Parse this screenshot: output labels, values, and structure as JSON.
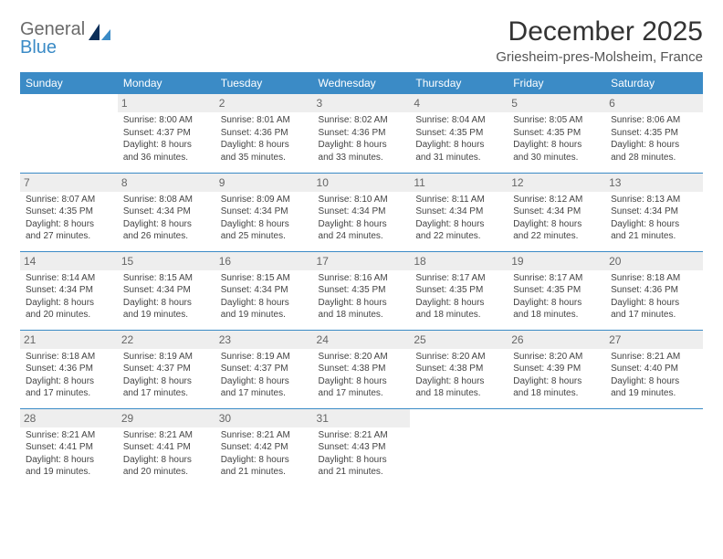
{
  "brand": {
    "part1": "General",
    "part2": "Blue"
  },
  "title": "December 2025",
  "subtitle": "Griesheim-pres-Molsheim, France",
  "colors": {
    "header_bg": "#3b8bc6",
    "header_text": "#ffffff",
    "daynum_bg": "#eeeeee",
    "row_border": "#3b8bc6",
    "text": "#444444",
    "page_bg": "#ffffff"
  },
  "weekdays": [
    "Sunday",
    "Monday",
    "Tuesday",
    "Wednesday",
    "Thursday",
    "Friday",
    "Saturday"
  ],
  "grid": [
    [
      null,
      {
        "n": "1",
        "sr": "Sunrise: 8:00 AM",
        "ss": "Sunset: 4:37 PM",
        "d1": "Daylight: 8 hours",
        "d2": "and 36 minutes."
      },
      {
        "n": "2",
        "sr": "Sunrise: 8:01 AM",
        "ss": "Sunset: 4:36 PM",
        "d1": "Daylight: 8 hours",
        "d2": "and 35 minutes."
      },
      {
        "n": "3",
        "sr": "Sunrise: 8:02 AM",
        "ss": "Sunset: 4:36 PM",
        "d1": "Daylight: 8 hours",
        "d2": "and 33 minutes."
      },
      {
        "n": "4",
        "sr": "Sunrise: 8:04 AM",
        "ss": "Sunset: 4:35 PM",
        "d1": "Daylight: 8 hours",
        "d2": "and 31 minutes."
      },
      {
        "n": "5",
        "sr": "Sunrise: 8:05 AM",
        "ss": "Sunset: 4:35 PM",
        "d1": "Daylight: 8 hours",
        "d2": "and 30 minutes."
      },
      {
        "n": "6",
        "sr": "Sunrise: 8:06 AM",
        "ss": "Sunset: 4:35 PM",
        "d1": "Daylight: 8 hours",
        "d2": "and 28 minutes."
      }
    ],
    [
      {
        "n": "7",
        "sr": "Sunrise: 8:07 AM",
        "ss": "Sunset: 4:35 PM",
        "d1": "Daylight: 8 hours",
        "d2": "and 27 minutes."
      },
      {
        "n": "8",
        "sr": "Sunrise: 8:08 AM",
        "ss": "Sunset: 4:34 PM",
        "d1": "Daylight: 8 hours",
        "d2": "and 26 minutes."
      },
      {
        "n": "9",
        "sr": "Sunrise: 8:09 AM",
        "ss": "Sunset: 4:34 PM",
        "d1": "Daylight: 8 hours",
        "d2": "and 25 minutes."
      },
      {
        "n": "10",
        "sr": "Sunrise: 8:10 AM",
        "ss": "Sunset: 4:34 PM",
        "d1": "Daylight: 8 hours",
        "d2": "and 24 minutes."
      },
      {
        "n": "11",
        "sr": "Sunrise: 8:11 AM",
        "ss": "Sunset: 4:34 PM",
        "d1": "Daylight: 8 hours",
        "d2": "and 22 minutes."
      },
      {
        "n": "12",
        "sr": "Sunrise: 8:12 AM",
        "ss": "Sunset: 4:34 PM",
        "d1": "Daylight: 8 hours",
        "d2": "and 22 minutes."
      },
      {
        "n": "13",
        "sr": "Sunrise: 8:13 AM",
        "ss": "Sunset: 4:34 PM",
        "d1": "Daylight: 8 hours",
        "d2": "and 21 minutes."
      }
    ],
    [
      {
        "n": "14",
        "sr": "Sunrise: 8:14 AM",
        "ss": "Sunset: 4:34 PM",
        "d1": "Daylight: 8 hours",
        "d2": "and 20 minutes."
      },
      {
        "n": "15",
        "sr": "Sunrise: 8:15 AM",
        "ss": "Sunset: 4:34 PM",
        "d1": "Daylight: 8 hours",
        "d2": "and 19 minutes."
      },
      {
        "n": "16",
        "sr": "Sunrise: 8:15 AM",
        "ss": "Sunset: 4:34 PM",
        "d1": "Daylight: 8 hours",
        "d2": "and 19 minutes."
      },
      {
        "n": "17",
        "sr": "Sunrise: 8:16 AM",
        "ss": "Sunset: 4:35 PM",
        "d1": "Daylight: 8 hours",
        "d2": "and 18 minutes."
      },
      {
        "n": "18",
        "sr": "Sunrise: 8:17 AM",
        "ss": "Sunset: 4:35 PM",
        "d1": "Daylight: 8 hours",
        "d2": "and 18 minutes."
      },
      {
        "n": "19",
        "sr": "Sunrise: 8:17 AM",
        "ss": "Sunset: 4:35 PM",
        "d1": "Daylight: 8 hours",
        "d2": "and 18 minutes."
      },
      {
        "n": "20",
        "sr": "Sunrise: 8:18 AM",
        "ss": "Sunset: 4:36 PM",
        "d1": "Daylight: 8 hours",
        "d2": "and 17 minutes."
      }
    ],
    [
      {
        "n": "21",
        "sr": "Sunrise: 8:18 AM",
        "ss": "Sunset: 4:36 PM",
        "d1": "Daylight: 8 hours",
        "d2": "and 17 minutes."
      },
      {
        "n": "22",
        "sr": "Sunrise: 8:19 AM",
        "ss": "Sunset: 4:37 PM",
        "d1": "Daylight: 8 hours",
        "d2": "and 17 minutes."
      },
      {
        "n": "23",
        "sr": "Sunrise: 8:19 AM",
        "ss": "Sunset: 4:37 PM",
        "d1": "Daylight: 8 hours",
        "d2": "and 17 minutes."
      },
      {
        "n": "24",
        "sr": "Sunrise: 8:20 AM",
        "ss": "Sunset: 4:38 PM",
        "d1": "Daylight: 8 hours",
        "d2": "and 17 minutes."
      },
      {
        "n": "25",
        "sr": "Sunrise: 8:20 AM",
        "ss": "Sunset: 4:38 PM",
        "d1": "Daylight: 8 hours",
        "d2": "and 18 minutes."
      },
      {
        "n": "26",
        "sr": "Sunrise: 8:20 AM",
        "ss": "Sunset: 4:39 PM",
        "d1": "Daylight: 8 hours",
        "d2": "and 18 minutes."
      },
      {
        "n": "27",
        "sr": "Sunrise: 8:21 AM",
        "ss": "Sunset: 4:40 PM",
        "d1": "Daylight: 8 hours",
        "d2": "and 19 minutes."
      }
    ],
    [
      {
        "n": "28",
        "sr": "Sunrise: 8:21 AM",
        "ss": "Sunset: 4:41 PM",
        "d1": "Daylight: 8 hours",
        "d2": "and 19 minutes."
      },
      {
        "n": "29",
        "sr": "Sunrise: 8:21 AM",
        "ss": "Sunset: 4:41 PM",
        "d1": "Daylight: 8 hours",
        "d2": "and 20 minutes."
      },
      {
        "n": "30",
        "sr": "Sunrise: 8:21 AM",
        "ss": "Sunset: 4:42 PM",
        "d1": "Daylight: 8 hours",
        "d2": "and 21 minutes."
      },
      {
        "n": "31",
        "sr": "Sunrise: 8:21 AM",
        "ss": "Sunset: 4:43 PM",
        "d1": "Daylight: 8 hours",
        "d2": "and 21 minutes."
      },
      null,
      null,
      null
    ]
  ]
}
